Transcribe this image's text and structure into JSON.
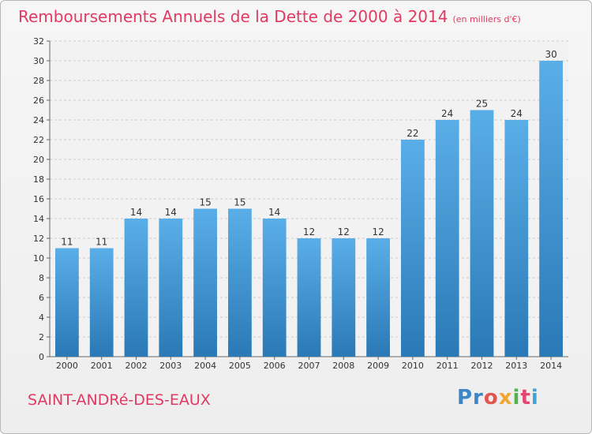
{
  "header": {
    "title": "Remboursements Annuels de la Dette de 2000 à 2014",
    "subtitle": "(en milliers d'€)"
  },
  "footer": {
    "commune": "SAINT-ANDRé-DES-EAUX",
    "logo": [
      "Pr",
      "o",
      "x",
      "i",
      "t",
      "i"
    ]
  },
  "colors": {
    "title": "#e13a62",
    "bar_top": "#5aaee8",
    "bar_bottom": "#2a79b6",
    "grid": "#cccccc"
  },
  "chart_data": {
    "type": "bar",
    "title": "Remboursements Annuels de la Dette de 2000 à 2014",
    "subtitle": "(en milliers d'€)",
    "xlabel": "",
    "ylabel": "",
    "categories": [
      "2000",
      "2001",
      "2002",
      "2003",
      "2004",
      "2005",
      "2006",
      "2007",
      "2008",
      "2009",
      "2010",
      "2011",
      "2012",
      "2013",
      "2014"
    ],
    "values": [
      11,
      11,
      14,
      14,
      15,
      15,
      14,
      12,
      12,
      12,
      22,
      24,
      25,
      24,
      30
    ],
    "ylim": [
      0,
      32
    ],
    "yticks": [
      "0",
      "2",
      "4",
      "6",
      "8",
      "10",
      "12",
      "14",
      "16",
      "18",
      "20",
      "22",
      "24",
      "26",
      "28",
      "30",
      "32"
    ],
    "grid": true,
    "legend": "none"
  }
}
